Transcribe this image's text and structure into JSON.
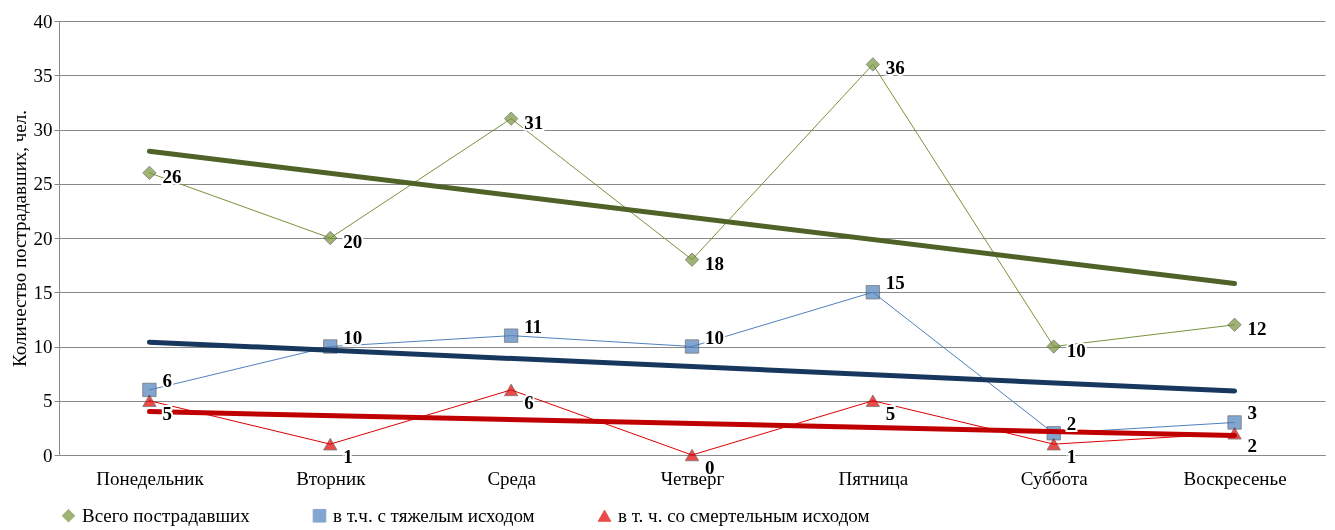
{
  "chart_data": {
    "type": "line",
    "ylabel": "Количество пострадавших, чел.",
    "categories": [
      "Понедельник",
      "Вторник",
      "Среда",
      "Четверг",
      "Пятница",
      "Суббота",
      "Воскресенье"
    ],
    "ylim": [
      0,
      40
    ],
    "yticks": [
      0,
      5,
      10,
      15,
      20,
      25,
      30,
      35,
      40
    ],
    "grid": "y",
    "legend": "bottom",
    "series": [
      {
        "name": "Всего пострадавших",
        "color": "#77933c",
        "marker": "diamond",
        "data_labels": true,
        "values": [
          26,
          20,
          31,
          18,
          36,
          10,
          12
        ]
      },
      {
        "name": "в т.ч. с тяжелым исходом",
        "color": "#4f81bd",
        "marker": "square",
        "data_labels": true,
        "values": [
          6,
          10,
          11,
          10,
          15,
          2,
          3
        ]
      },
      {
        "name": "в т. ч. со смертельным исходом",
        "color": "#e00000",
        "marker": "triangle",
        "data_labels": true,
        "values": [
          5,
          1,
          6,
          0,
          5,
          1,
          2
        ]
      },
      {
        "type": "line",
        "color": "#4f6228",
        "marker": "none",
        "x": [
          "Понедельник",
          "Воскресенье"
        ],
        "values": [
          28,
          15.8
        ]
      },
      {
        "type": "line",
        "color": "#17375e",
        "marker": "none",
        "x": [
          "Понедельник",
          "Воскресенье"
        ],
        "values": [
          10.4,
          5.9
        ]
      },
      {
        "type": "line",
        "color": "#c00000",
        "marker": "none",
        "x": [
          "Понедельник",
          "Воскресенье"
        ],
        "values": [
          4,
          1.8
        ]
      }
    ]
  }
}
